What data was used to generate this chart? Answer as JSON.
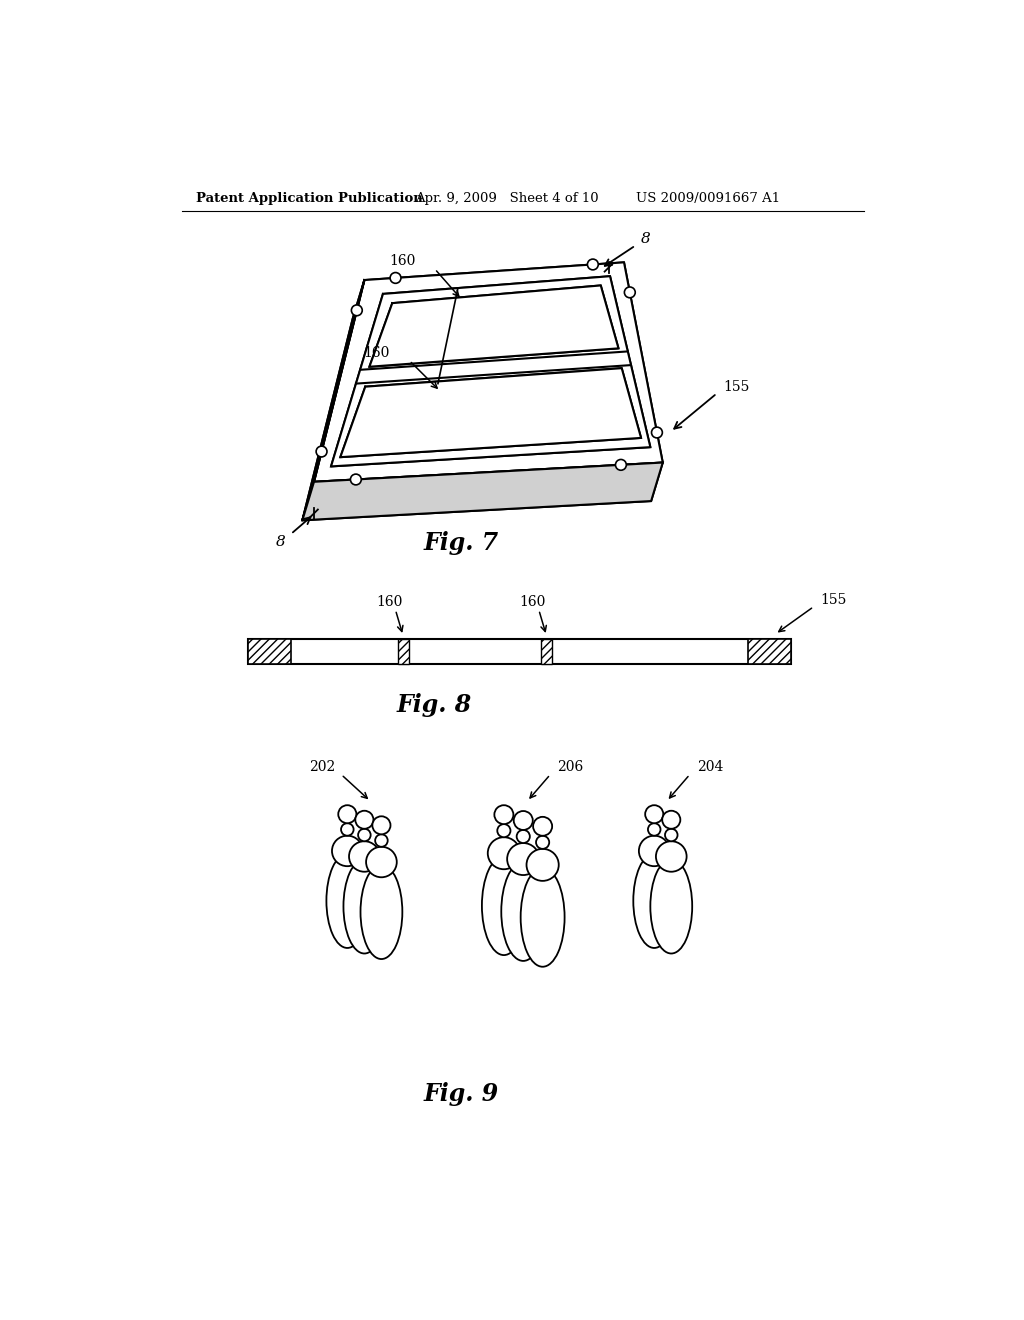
{
  "bg_color": "#ffffff",
  "header_left": "Patent Application Publication",
  "header_mid": "Apr. 9, 2009   Sheet 4 of 10",
  "header_right": "US 2009/0091667 A1",
  "fig7_label": "Fig. 7",
  "fig8_label": "Fig. 8",
  "fig9_label": "Fig. 9"
}
